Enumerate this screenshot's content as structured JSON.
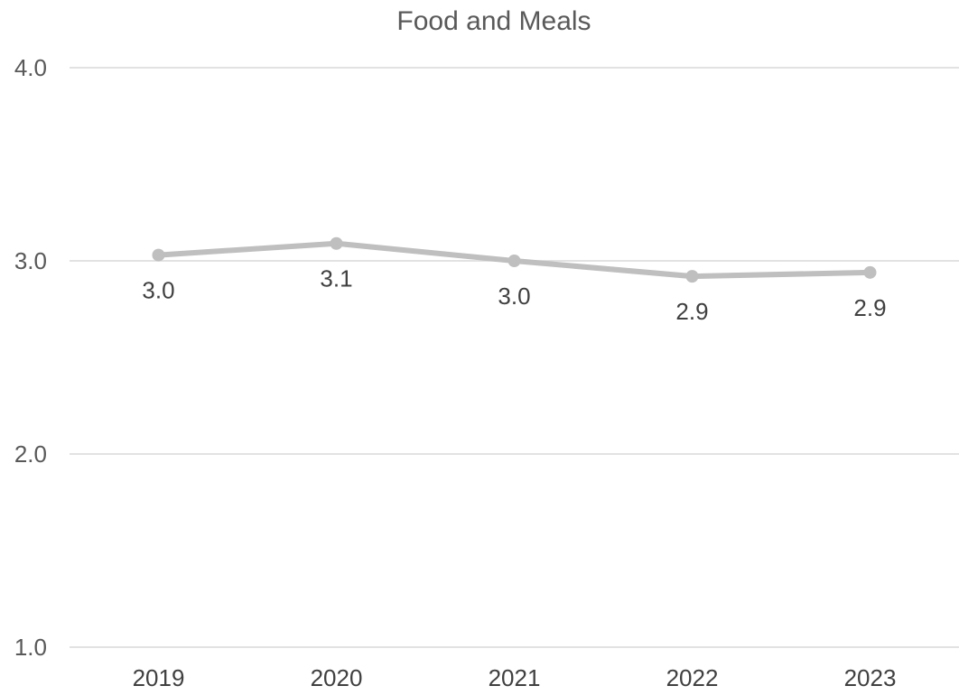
{
  "chart_data": {
    "type": "line",
    "title": "Food and Meals",
    "xlabel": "",
    "ylabel": "",
    "categories": [
      "2019",
      "2020",
      "2021",
      "2022",
      "2023"
    ],
    "series": [
      {
        "values": [
          3.03,
          3.09,
          3.0,
          2.92,
          2.94
        ],
        "data_labels": [
          "3.0",
          "3.1",
          "3.0",
          "2.9",
          "2.9"
        ],
        "color": "#bfbfbf"
      }
    ],
    "ylim": [
      1.0,
      4.0
    ],
    "yticks": [
      "1.0",
      "2.0",
      "3.0",
      "4.0"
    ],
    "grid": true,
    "legend": "none",
    "colors": {
      "line": "#bfbfbf",
      "grid": "#d9d9d9",
      "text": "#595959"
    }
  }
}
